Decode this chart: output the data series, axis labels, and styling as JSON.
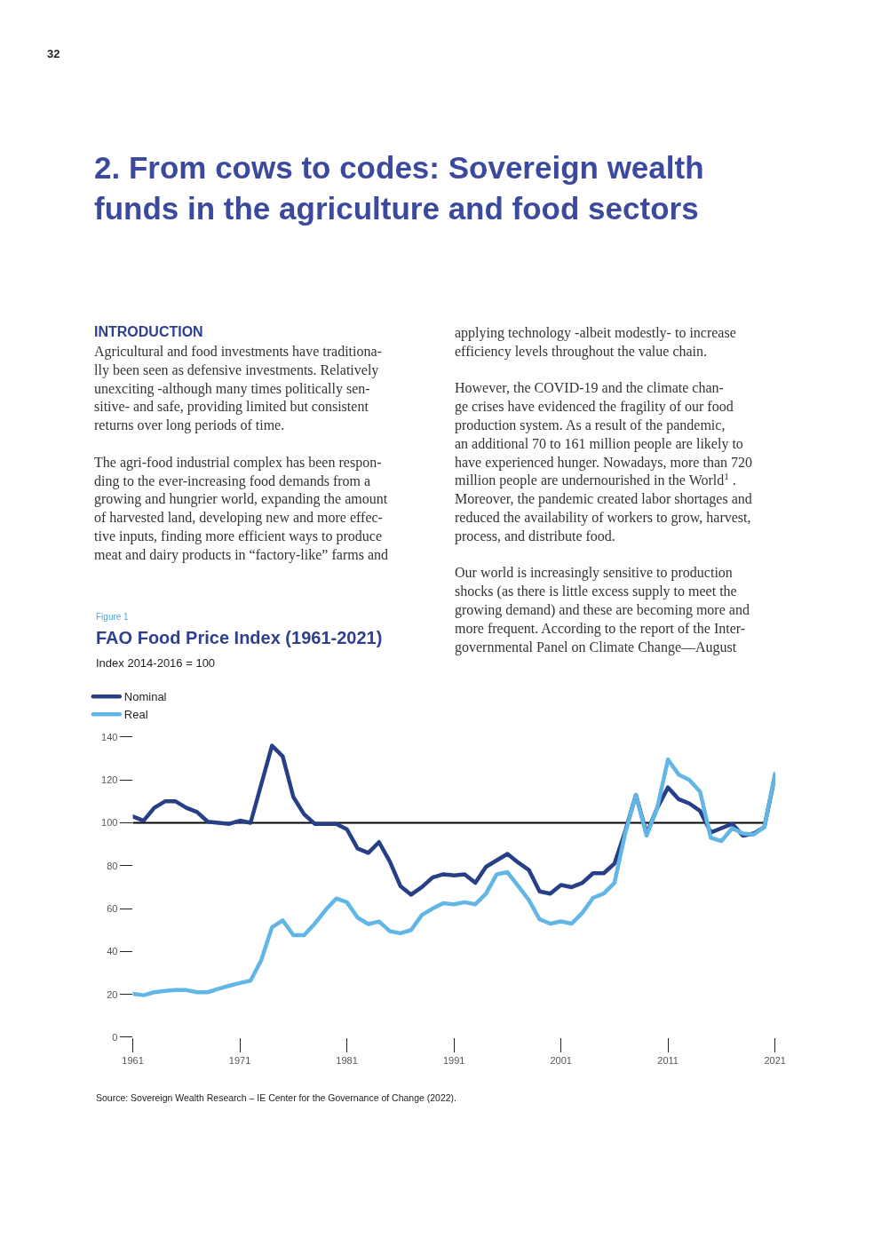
{
  "chart_data": {
    "type": "line",
    "title": "FAO Food Price Index (1961-2021)",
    "subtitle": "Index 2014-2016 = 100",
    "x": [
      1961,
      1962,
      1963,
      1964,
      1965,
      1966,
      1967,
      1968,
      1969,
      1970,
      1971,
      1972,
      1973,
      1974,
      1975,
      1976,
      1977,
      1978,
      1979,
      1980,
      1981,
      1982,
      1983,
      1984,
      1985,
      1986,
      1987,
      1988,
      1989,
      1990,
      1991,
      1992,
      1993,
      1994,
      1995,
      1996,
      1997,
      1998,
      1999,
      2000,
      2001,
      2002,
      2003,
      2004,
      2005,
      2006,
      2007,
      2008,
      2009,
      2010,
      2011,
      2012,
      2013,
      2014,
      2015,
      2016,
      2017,
      2018,
      2019,
      2020,
      2021
    ],
    "series": [
      {
        "name": "Nominal",
        "color": "#263f87",
        "values": [
          103,
          101,
          107,
          110,
          110,
          107,
          105,
          100.5,
          100,
          99.5,
          101,
          100,
          118,
          136,
          131,
          112,
          104,
          99.5,
          99.5,
          99.5,
          97,
          88,
          86,
          91,
          82,
          70.5,
          66.5,
          70,
          74.5,
          76,
          75.5,
          76,
          72,
          79.5,
          82.5,
          85.5,
          81.5,
          78,
          68,
          67,
          71,
          70,
          72,
          76.5,
          76.5,
          81,
          96,
          113,
          95,
          107,
          116.5,
          111,
          109,
          105.5,
          95.5,
          97.5,
          99.5,
          94,
          95,
          98,
          122
        ]
      },
      {
        "name": "Real",
        "color": "#62b6e6",
        "values": [
          20.3,
          19.6,
          21,
          21.6,
          22,
          22,
          21,
          21,
          22.6,
          24,
          25.3,
          26.4,
          36,
          51.3,
          54.5,
          47.6,
          47.6,
          53,
          59.3,
          64.7,
          63,
          55.8,
          52.8,
          54,
          49.5,
          48.5,
          50,
          57,
          60,
          62.5,
          62,
          63,
          62,
          67,
          76,
          77,
          70.5,
          64,
          55,
          53,
          54,
          53,
          58,
          65,
          67,
          72,
          95,
          113,
          94,
          107,
          129.5,
          122.5,
          120,
          114.5,
          93,
          91.5,
          97.5,
          95,
          94.5,
          98,
          123
        ]
      }
    ],
    "xlim": [
      1961,
      2021
    ],
    "xticks": [
      1961,
      1971,
      1981,
      1991,
      2001,
      2011,
      2021
    ],
    "ylim": [
      0,
      140
    ],
    "yticks": [
      0,
      20,
      40,
      60,
      80,
      100,
      120,
      140
    ],
    "ref_lines": [
      {
        "axis": "y",
        "value": 100,
        "color": "#000000"
      }
    ],
    "grid": false,
    "legend": "top left",
    "marker": "none",
    "line_style": "solid",
    "annotations": [
      "32",
      "2. From cows to codes: Sovereign wealth\nfunds in the agriculture and food sectors",
      "INTRODUCTION",
      "Agricultural and food investments have traditiona-\nlly been seen as defensive investments. Relatively\nunexciting -although many times politically sen-\nsitive- and safe, providing limited but consistent\nreturns over long periods of time.\n\nThe agri-food industrial complex has been respon-\nding to the ever-increasing food demands from a\ngrowing and hungrier world, expanding the amount\nof harvested land, developing new and more effec-\ntive inputs, finding more efficient ways to produce\nmeat and dairy products in “factory-like” farms and",
      "applying technology -albeit modestly- to increase\nefficiency levels throughout the value chain.\n\nHowever, the COVID-19 and the climate chan-\nge crises have evidenced the fragility of our food\nproduction system. As a result of the pandemic,\nan additional 70 to 161 million people are likely to\nhave experienced hunger. Nowadays, more than 720\nmillion people are undernourished in the World$^{1}$ .\nMoreover, the pandemic created labor shortages and\nreduced the availability of workers to grow, harvest,\nprocess, and distribute food.\n\nOur world is increasingly sensitive to production\nshocks (as there is little excess supply to meet the\ngrowing demand) and these are becoming more and\nmore frequent. According to the report of the Inter-\ngovernmental Panel on Climate Change—August",
      "Figure 1",
      "Source: Sovereign Wealth Research – IE Center for the Governance of Change (2022)."
    ]
  }
}
